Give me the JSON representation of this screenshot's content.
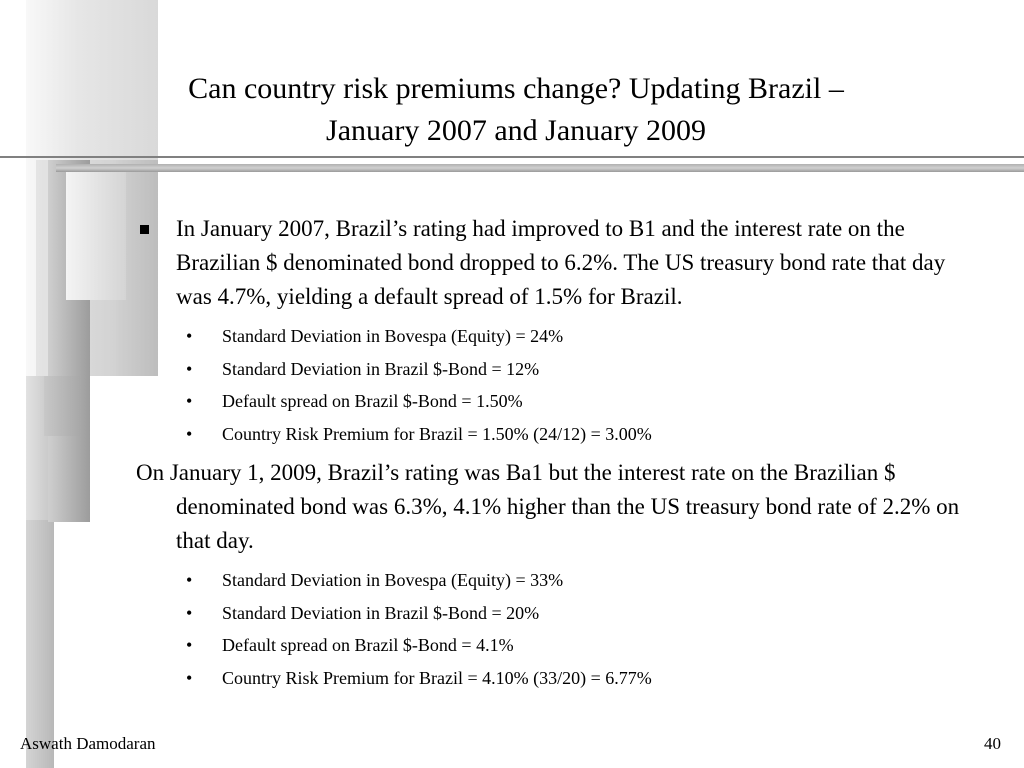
{
  "slide": {
    "title_line1": "Can country risk premiums change? Updating Brazil –",
    "title_line2": "January 2007 and January 2009",
    "point1": "In January 2007, Brazil’s rating had improved to B1 and the interest rate on the Brazilian $ denominated bond dropped to 6.2%. The US treasury bond rate that day was 4.7%, yielding a default spread of 1.5% for Brazil.",
    "point1_subs": [
      "Standard Deviation in Bovespa (Equity) = 24%",
      "Standard Deviation in Brazil $-Bond = 12%",
      "Default spread on Brazil $-Bond = 1.50%",
      "Country Risk Premium for Brazil = 1.50% (24/12) =  3.00%"
    ],
    "point2": "On January 1, 2009, Brazil’s rating was Ba1 but the interest rate on the Brazilian $ denominated bond was 6.3%, 4.1%  higher than the US treasury bond rate of 2.2% on that day.",
    "point2_subs": [
      "Standard Deviation in Bovespa (Equity) = 33%",
      "Standard Deviation in Brazil $-Bond = 20%",
      "Default spread on Brazil $-Bond = 4.1%",
      "Country Risk Premium for Brazil = 4.10% (33/20) =  6.77%"
    ],
    "bullet_sub": "•"
  },
  "footer": {
    "author": "Aswath Damodaran",
    "page_number": "40"
  }
}
